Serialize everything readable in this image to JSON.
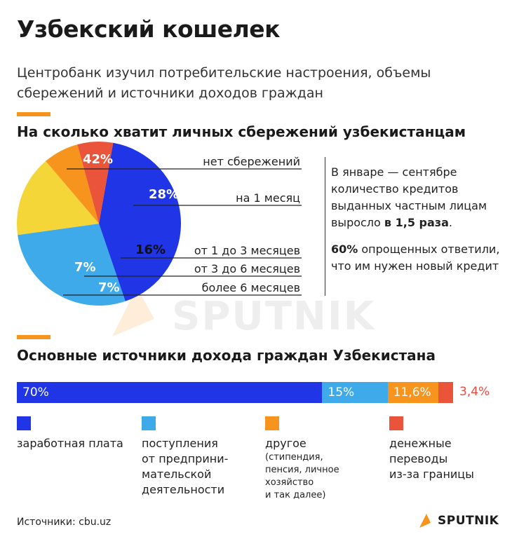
{
  "header": {
    "title": "Узбекский кошелек",
    "subtitle": "Центробанк изучил потребительские настроения, объемы сбережений и источники доходов граждан"
  },
  "section1": {
    "title": "На сколько хватит личных сбережений узбекистанцам"
  },
  "section2": {
    "title": "Основные источники дохода граждан Узбекистана"
  },
  "note": {
    "p1_text": "В январе — сентябре количество кредитов выданных частным лицам выросло ",
    "p1_bold": "в 1,5 раза",
    "p1_end": ".",
    "p2_bold": "60%",
    "p2_text": " опрощенных ответили, что им нужен новый кредит"
  },
  "colors": {
    "blue_dark": "#1f35e6",
    "blue_light": "#3eaaea",
    "yellow": "#f4d639",
    "orange": "#f7941d",
    "red": "#e9543a"
  },
  "chart_data": [
    {
      "type": "pie",
      "title": "На сколько хватит личных сбережений узбекистанцам",
      "slices": [
        {
          "name": "нет сбережений",
          "value": 42,
          "label": "42%",
          "color": "#1f35e6"
        },
        {
          "name": "на 1 месяц",
          "value": 28,
          "label": "28%",
          "color": "#3eaaea"
        },
        {
          "name": "от 1 до 3 месяцев",
          "value": 16,
          "label": "16%",
          "color": "#f4d639"
        },
        {
          "name": "от 3 до 6 месяцев",
          "value": 7,
          "label": "7%",
          "color": "#f7941d"
        },
        {
          "name": "более 6 месяцев",
          "value": 7,
          "label": "7%",
          "color": "#e9543a"
        }
      ]
    },
    {
      "type": "bar",
      "orientation": "horizontal-stacked",
      "title": "Основные источники дохода граждан Узбекистана",
      "series": [
        {
          "name": "заработная плата",
          "value": 70,
          "label": "70%",
          "color": "#1f35e6"
        },
        {
          "name": "поступления от предпринимательской деятельности",
          "value": 15,
          "label": "15%",
          "color": "#3eaaea"
        },
        {
          "name": "другое",
          "value": 11.6,
          "label": "11,6%",
          "color": "#f7941d"
        },
        {
          "name": "денежные переводы из-за границы",
          "value": 3.4,
          "label": "3,4%",
          "color": "#e9543a"
        }
      ]
    }
  ],
  "legend": [
    {
      "text": "заработная плата",
      "sub": "",
      "color": "#1f35e6"
    },
    {
      "text": "поступления\nот предприни-\nмательской\nдеятельности",
      "sub": "",
      "color": "#3eaaea"
    },
    {
      "text": "другое",
      "sub": "(стипендия,\nпенсия, личное\nхозяйство\nи так далее)",
      "color": "#f7941d"
    },
    {
      "text": "денежные\nпереводы\nиз-за границы",
      "sub": "",
      "color": "#e9543a"
    }
  ],
  "footer": {
    "source": "Источники: cbu.uz",
    "logo": "SPUTNIK",
    "watermark": "SPUTNIK"
  }
}
